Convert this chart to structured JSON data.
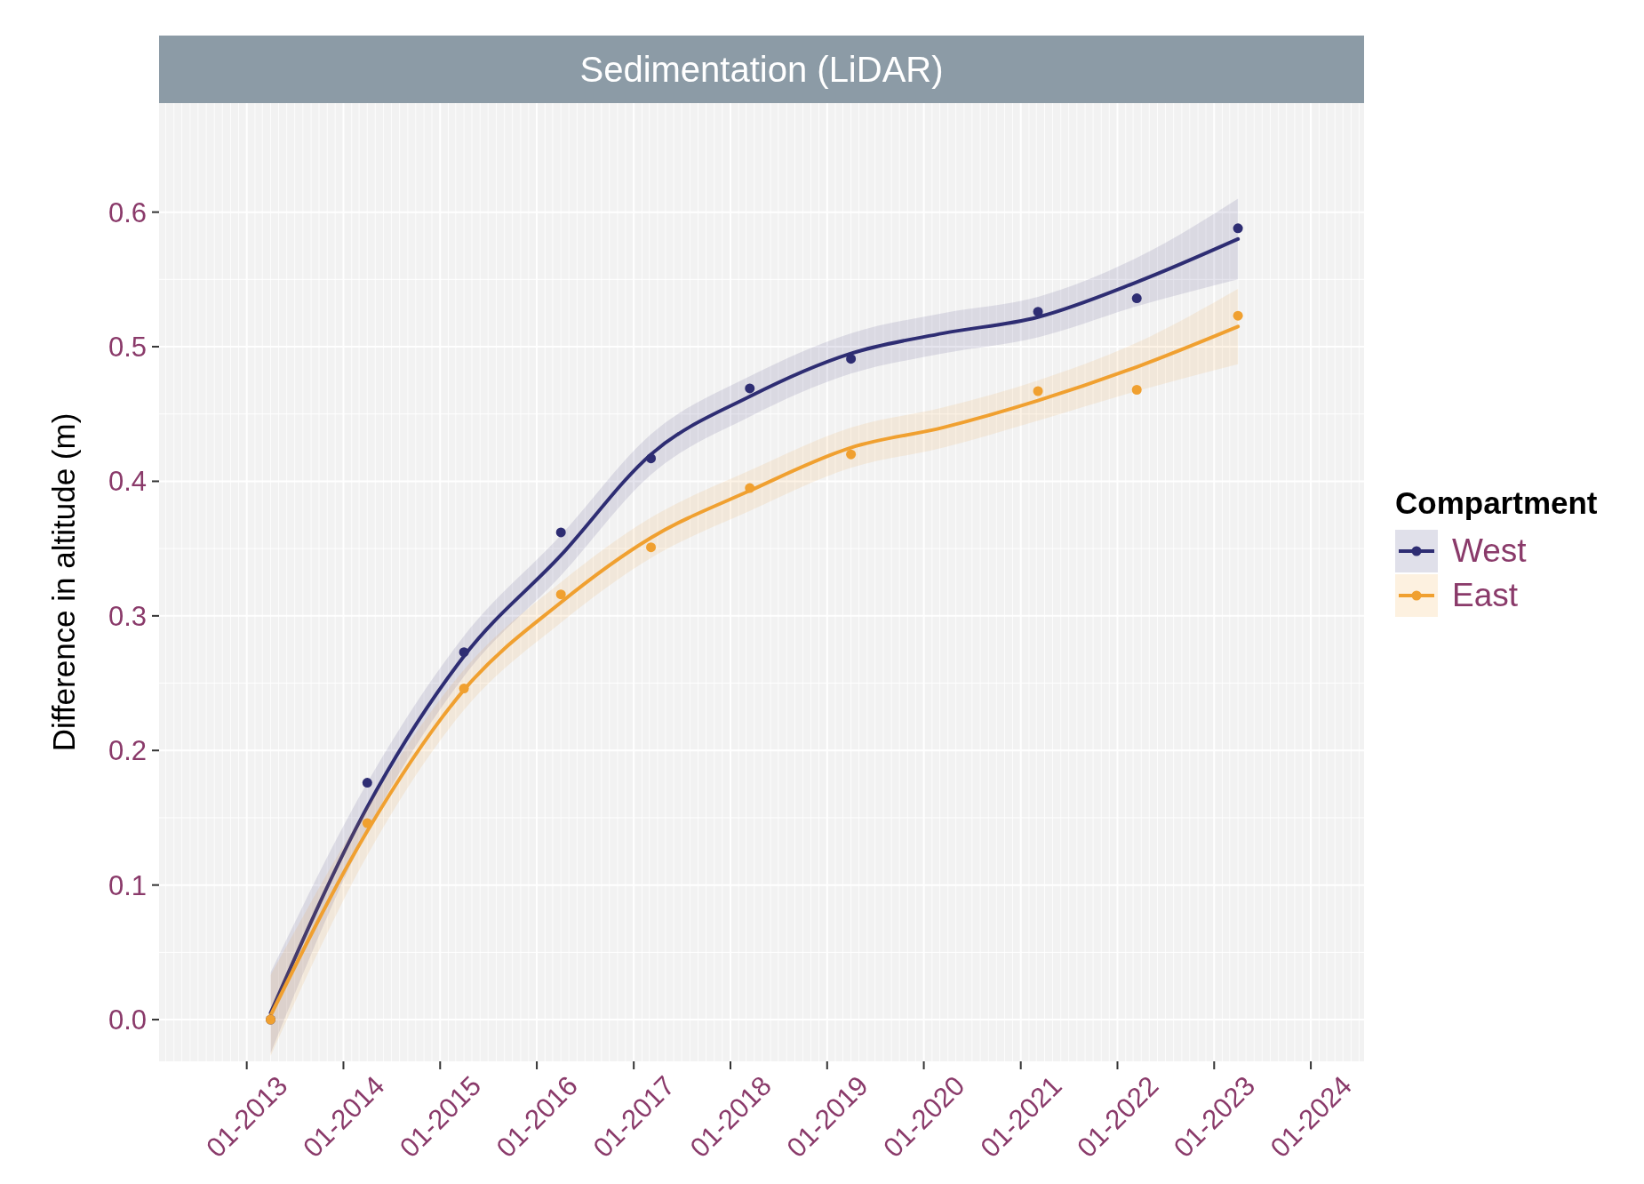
{
  "chart_data": {
    "type": "line",
    "title": "Sedimentation (LiDAR)",
    "ylabel": "Difference in altitude (m)",
    "legend_title": "Compartment",
    "legend": "right",
    "grid": true,
    "xlim": [
      "2012-02-05",
      "2024-07-20"
    ],
    "ylim": [
      -0.031,
      0.681
    ],
    "xticks": [
      {
        "value": "2013-01-01",
        "label": "01-2013"
      },
      {
        "value": "2014-01-01",
        "label": "01-2014"
      },
      {
        "value": "2015-01-01",
        "label": "01-2015"
      },
      {
        "value": "2016-01-01",
        "label": "01-2016"
      },
      {
        "value": "2017-01-01",
        "label": "01-2017"
      },
      {
        "value": "2018-01-01",
        "label": "01-2018"
      },
      {
        "value": "2019-01-01",
        "label": "01-2019"
      },
      {
        "value": "2020-01-01",
        "label": "01-2020"
      },
      {
        "value": "2021-01-01",
        "label": "01-2021"
      },
      {
        "value": "2022-01-01",
        "label": "01-2022"
      },
      {
        "value": "2023-01-01",
        "label": "01-2023"
      },
      {
        "value": "2024-01-01",
        "label": "01-2024"
      }
    ],
    "yticks": [
      {
        "value": 0,
        "label": "0.0"
      },
      0.1,
      0.2,
      0.3,
      0.4,
      0.5,
      0.6
    ],
    "series": [
      {
        "name": "West",
        "type": "line",
        "color": "#2e2d73",
        "x": [
          "2013-04-01",
          "2014-04-01",
          "2015-04-01",
          "2016-04-01",
          "2017-03-07",
          "2018-03-15",
          "2019-04-01",
          "2020-03-15",
          "2021-03-07",
          "2022-03-15",
          "2023-04-01"
        ],
        "values": [
          0.005,
          0.158,
          0.27,
          0.345,
          0.42,
          0.463,
          0.495,
          0.51,
          0.522,
          0.548,
          0.58
        ],
        "lower": [
          -0.025,
          0.14,
          0.255,
          0.33,
          0.405,
          0.448,
          0.48,
          0.495,
          0.507,
          0.53,
          0.55
        ],
        "upper": [
          0.035,
          0.176,
          0.285,
          0.36,
          0.435,
          0.478,
          0.51,
          0.525,
          0.537,
          0.566,
          0.61
        ]
      },
      {
        "name": "East",
        "type": "line",
        "color": "#f0a030",
        "x": [
          "2013-04-01",
          "2014-04-01",
          "2015-04-01",
          "2016-04-01",
          "2017-03-07",
          "2018-03-15",
          "2019-04-01",
          "2020-03-15",
          "2021-03-07",
          "2022-03-15",
          "2023-04-01"
        ],
        "values": [
          0.003,
          0.14,
          0.245,
          0.31,
          0.358,
          0.393,
          0.425,
          0.44,
          0.46,
          0.485,
          0.515
        ],
        "lower": [
          -0.027,
          0.122,
          0.23,
          0.295,
          0.343,
          0.378,
          0.41,
          0.425,
          0.445,
          0.467,
          0.487
        ],
        "upper": [
          0.033,
          0.158,
          0.26,
          0.325,
          0.373,
          0.408,
          0.44,
          0.455,
          0.475,
          0.503,
          0.543
        ]
      },
      {
        "type": "scatter",
        "marker": "circle",
        "color": "#2e2d73",
        "x": [
          "2013-04-01",
          "2014-04-01",
          "2015-04-01",
          "2016-04-01",
          "2017-03-07",
          "2018-03-15",
          "2019-04-01",
          "2021-03-07",
          "2022-03-15",
          "2023-04-01"
        ],
        "values": [
          0,
          0.176,
          0.273,
          0.362,
          0.417,
          0.469,
          0.491,
          0.526,
          0.536,
          0.588
        ]
      },
      {
        "type": "scatter",
        "marker": "circle",
        "color": "#f0a030",
        "x": [
          "2013-04-01",
          "2014-04-01",
          "2015-04-01",
          "2016-04-01",
          "2017-03-07",
          "2018-03-15",
          "2019-04-01",
          "2021-03-07",
          "2022-03-15",
          "2023-04-01"
        ],
        "values": [
          0,
          0.146,
          0.246,
          0.316,
          0.351,
          0.395,
          0.42,
          0.467,
          0.468,
          0.523
        ]
      }
    ]
  }
}
